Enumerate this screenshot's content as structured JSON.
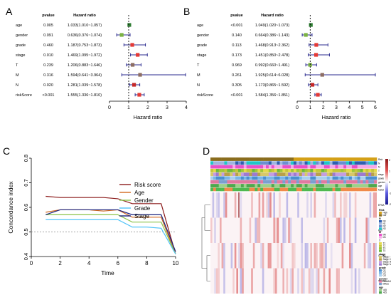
{
  "panels": {
    "A": "A",
    "B": "B",
    "C": "C",
    "D": "D"
  },
  "chart_data": [
    {
      "panel": "A",
      "type": "forest",
      "col_pvalue": "pvalue",
      "col_hr": "Hazard ratio",
      "xlabel": "Hazard ratio",
      "xticks": [
        0,
        1,
        2,
        3,
        4
      ],
      "xlim": [
        0,
        4
      ],
      "reference_line": 1,
      "rows": [
        {
          "label": "age",
          "p": "0.005",
          "hr_text": "1.033(1.010~1.057)",
          "hr": 1.033,
          "lo": 1.01,
          "hi": 1.057,
          "color": "#2e7d32"
        },
        {
          "label": "gender",
          "p": "0.091",
          "hr_text": "0.636(0.376~1.074)",
          "hr": 0.636,
          "lo": 0.376,
          "hi": 1.074,
          "color": "#7cb342"
        },
        {
          "label": "grade",
          "p": "0.460",
          "hr_text": "1.187(0.753~1.873)",
          "hr": 1.187,
          "lo": 0.753,
          "hi": 1.873,
          "color": "#e53935"
        },
        {
          "label": "stage",
          "p": "0.010",
          "hr_text": "1.469(1.095~1.972)",
          "hr": 1.469,
          "lo": 1.095,
          "hi": 1.972,
          "color": "#e53935"
        },
        {
          "label": "T",
          "p": "0.239",
          "hr_text": "1.206(0.883~1.646)",
          "hr": 1.206,
          "lo": 0.883,
          "hi": 1.646,
          "color": "#8d6e63"
        },
        {
          "label": "M",
          "p": "0.316",
          "hr_text": "1.594(0.641~3.964)",
          "hr": 1.594,
          "lo": 0.641,
          "hi": 3.964,
          "color": "#8d6e63"
        },
        {
          "label": "N",
          "p": "0.020",
          "hr_text": "1.281(1.039~1.578)",
          "hr": 1.281,
          "lo": 1.039,
          "hi": 1.578,
          "color": "#c62828"
        },
        {
          "label": "riskScore",
          "p": "<0.001",
          "hr_text": "1.555(1.336~1.810)",
          "hr": 1.555,
          "lo": 1.336,
          "hi": 1.81,
          "color": "#e53935"
        }
      ]
    },
    {
      "panel": "B",
      "type": "forest",
      "col_pvalue": "pvalue",
      "col_hr": "Hazard ratio",
      "xlabel": "Hazard ratio",
      "xticks": [
        0,
        1,
        2,
        3,
        4,
        5,
        6
      ],
      "xlim": [
        0,
        6
      ],
      "reference_line": 1,
      "rows": [
        {
          "label": "age",
          "p": "<0.001",
          "hr_text": "1.049(1.020~1.073)",
          "hr": 1.049,
          "lo": 1.02,
          "hi": 1.073,
          "color": "#2e7d32"
        },
        {
          "label": "gender",
          "p": "0.140",
          "hr_text": "0.664(0.386~1.143)",
          "hr": 0.664,
          "lo": 0.386,
          "hi": 1.143,
          "color": "#7cb342"
        },
        {
          "label": "grade",
          "p": "0.113",
          "hr_text": "1.468(0.913~2.362)",
          "hr": 1.468,
          "lo": 0.913,
          "hi": 2.362,
          "color": "#e53935"
        },
        {
          "label": "stage",
          "p": "0.173",
          "hr_text": "1.451(0.850~2.478)",
          "hr": 1.451,
          "lo": 0.85,
          "hi": 2.478,
          "color": "#e53935"
        },
        {
          "label": "T",
          "p": "0.969",
          "hr_text": "0.992(0.660~1.491)",
          "hr": 0.992,
          "lo": 0.66,
          "hi": 1.491,
          "color": "#7cb342"
        },
        {
          "label": "M",
          "p": "0.261",
          "hr_text": "1.925(0.614~6.028)",
          "hr": 1.925,
          "lo": 0.614,
          "hi": 6.028,
          "color": "#8d6e63"
        },
        {
          "label": "N",
          "p": "0.305",
          "hr_text": "1.173(0.865~1.592)",
          "hr": 1.173,
          "lo": 0.865,
          "hi": 1.592,
          "color": "#c62828"
        },
        {
          "label": "riskScore",
          "p": "<0.001",
          "hr_text": "1.584(1.356~1.851)",
          "hr": 1.584,
          "lo": 1.356,
          "hi": 1.851,
          "color": "#e53935"
        }
      ]
    },
    {
      "panel": "C",
      "type": "line",
      "xlabel": "Time",
      "ylabel": "Concordance index",
      "xlim": [
        0,
        10
      ],
      "ylim": [
        0.4,
        0.8
      ],
      "xticks": [
        0,
        2,
        4,
        6,
        8,
        10
      ],
      "yticks": [
        0.4,
        0.5,
        0.6,
        0.7,
        0.8
      ],
      "reference_y": 0.5,
      "x": [
        1,
        2,
        3,
        4,
        5,
        6,
        7,
        8,
        9,
        10
      ],
      "series": [
        {
          "name": "Risk score",
          "color": "#8b1a1a",
          "values": [
            0.645,
            0.64,
            0.64,
            0.64,
            0.64,
            0.635,
            0.615,
            0.615,
            0.615,
            0.41
          ]
        },
        {
          "name": "Age",
          "color": "#d2691e",
          "values": [
            0.58,
            0.59,
            0.59,
            0.59,
            0.585,
            0.59,
            0.56,
            0.56,
            0.56,
            0.41
          ]
        },
        {
          "name": "Gender",
          "color": "#8bc34a",
          "values": [
            0.57,
            0.57,
            0.57,
            0.57,
            0.57,
            0.57,
            0.54,
            0.54,
            0.54,
            0.41
          ]
        },
        {
          "name": "Grade",
          "color": "#4fc3f7",
          "values": [
            0.55,
            0.55,
            0.55,
            0.55,
            0.55,
            0.55,
            0.52,
            0.52,
            0.515,
            0.41
          ]
        },
        {
          "name": "Stage",
          "color": "#1a237e",
          "values": [
            0.57,
            0.59,
            0.59,
            0.59,
            0.59,
            0.59,
            0.57,
            0.57,
            0.57,
            0.42
          ]
        }
      ]
    },
    {
      "panel": "D",
      "type": "heatmap",
      "row_labels": [
        "EFNA",
        "Rett",
        "GCTA4",
        "TPRG3"
      ],
      "annotation_tracks": [
        "Risk",
        "N",
        "M",
        "T",
        "stage",
        "grade",
        "gender",
        "age",
        "fustat"
      ],
      "colorbar_ticks": [
        "2",
        "1",
        "0",
        "-1",
        "-2"
      ],
      "legend_groups": [
        {
          "title": "Risk",
          "items": [
            {
              "label": "High",
              "color": "#d4a017"
            },
            {
              "label": "low",
              "color": "#8a6d1e"
            }
          ]
        },
        {
          "title": "N",
          "items": [
            {
              "label": "N0",
              "color": "#2e5fb0"
            },
            {
              "label": "N1",
              "color": "#9fb6e0"
            },
            {
              "label": "N2",
              "color": "#6b8fd1"
            },
            {
              "label": "N3",
              "color": "#1fc7c7"
            }
          ]
        },
        {
          "title": "M",
          "items": [
            {
              "label": "M0",
              "color": "#e94fc9"
            },
            {
              "label": "M1",
              "color": "#f7a8e8"
            }
          ]
        },
        {
          "title": "T",
          "items": [
            {
              "label": "T1",
              "color": "#e3d94a"
            },
            {
              "label": "T2",
              "color": "#c5c53a"
            },
            {
              "label": "T3",
              "color": "#9fc53a"
            },
            {
              "label": "T4",
              "color": "#6fb83a"
            }
          ]
        },
        {
          "title": "stage",
          "items": [
            {
              "label": "Stage I",
              "color": "#d8c86a"
            },
            {
              "label": "Stage II",
              "color": "#b8a04a"
            },
            {
              "label": "Stage III",
              "color": "#c59ee0"
            },
            {
              "label": "Stage IV",
              "color": "#9e7ad0"
            }
          ]
        },
        {
          "title": "grade",
          "items": [
            {
              "label": "G1",
              "color": "#4a8fd0"
            },
            {
              "label": "G2",
              "color": "#7ab6e8"
            },
            {
              "label": "G3",
              "color": "#aad0f0"
            }
          ]
        },
        {
          "title": "gender",
          "items": [
            {
              "label": "FEMALE",
              "color": "#e07aa0"
            },
            {
              "label": "MALE",
              "color": "#7a9fd0"
            }
          ]
        },
        {
          "title": "age",
          "items": [
            {
              "label": "<65",
              "color": "#9ed08a"
            },
            {
              "label": ">65",
              "color": "#4fa84f"
            }
          ]
        },
        {
          "title": "fustat",
          "items": [
            {
              "label": "Alive",
              "color": "#f08a4a"
            },
            {
              "label": "Dead",
              "color": "#4fb84f"
            }
          ]
        }
      ]
    }
  ]
}
